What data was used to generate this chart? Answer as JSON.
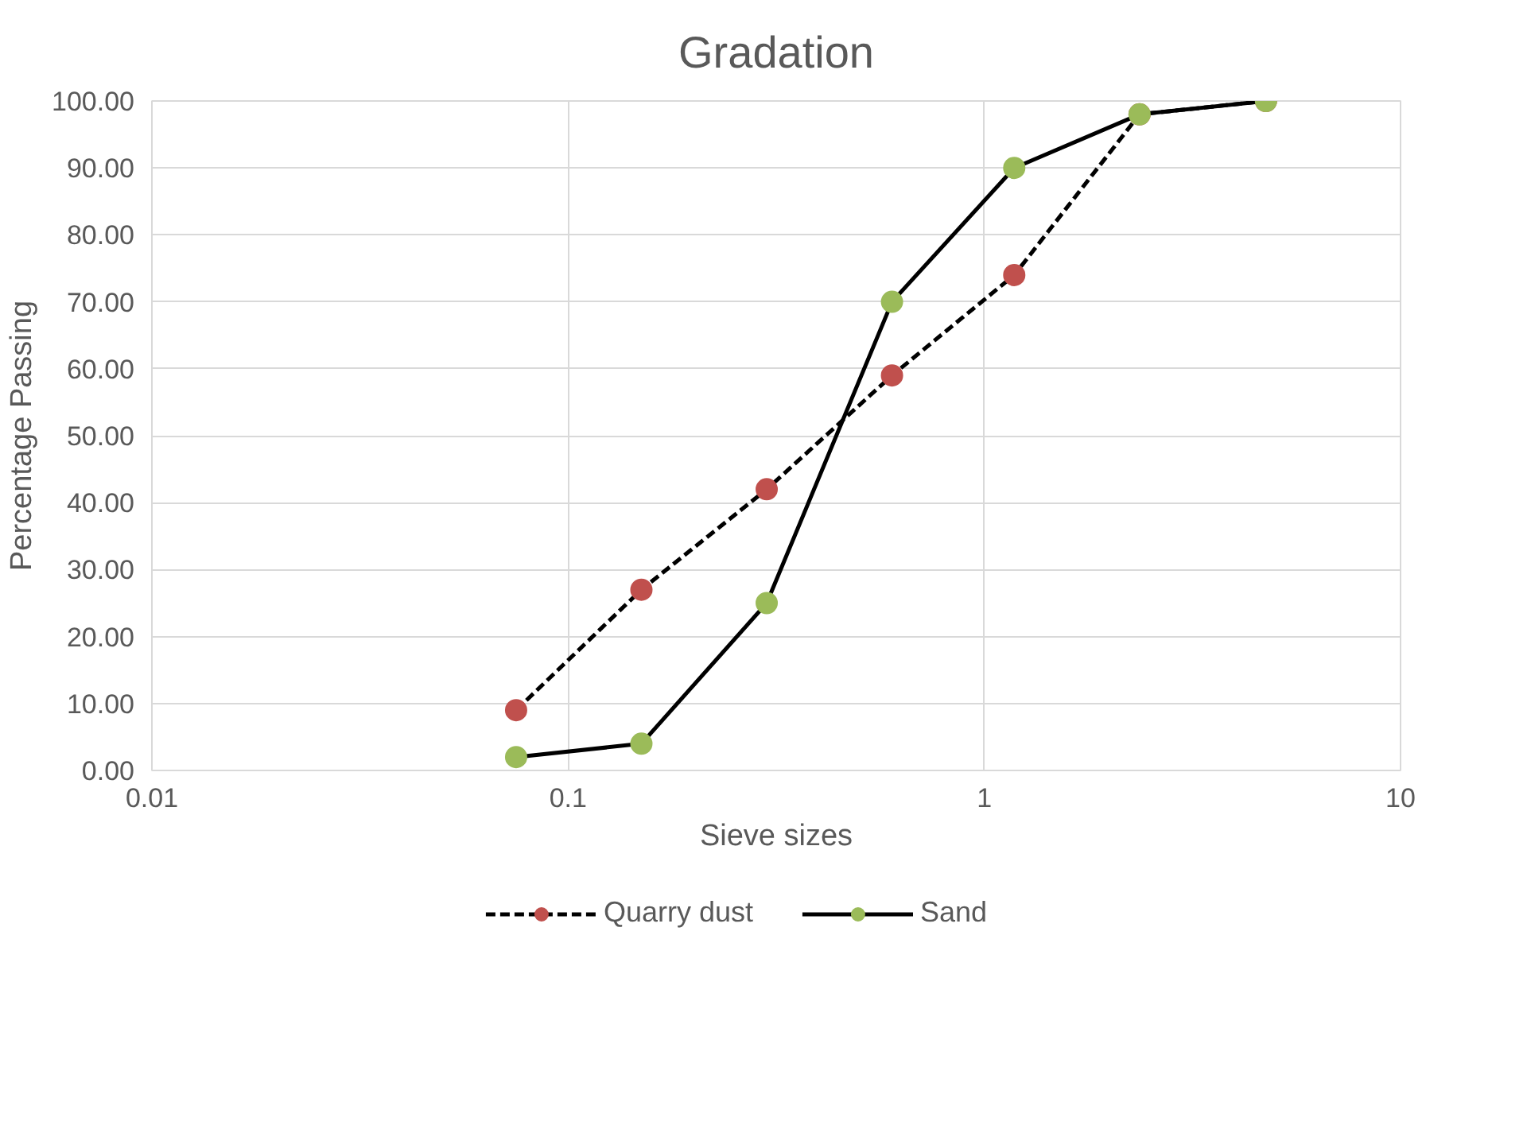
{
  "chart_data": {
    "type": "line",
    "title": "Gradation",
    "xlabel": "Sieve sizes",
    "ylabel": "Percentage Passing",
    "log": "x",
    "xlim": [
      0.01,
      10
    ],
    "xticks": [
      0.01,
      0.1,
      1,
      10
    ],
    "ylim": [
      0,
      100
    ],
    "yticks": [
      {
        "value": 0,
        "label": "0.00"
      },
      {
        "value": 10,
        "label": "10.00"
      },
      {
        "value": 20,
        "label": "20.00"
      },
      {
        "value": 30,
        "label": "30.00"
      },
      {
        "value": 40,
        "label": "40.00"
      },
      {
        "value": 50,
        "label": "50.00"
      },
      {
        "value": 60,
        "label": "60.00"
      },
      {
        "value": 70,
        "label": "70.00"
      },
      {
        "value": 80,
        "label": "80.00"
      },
      {
        "value": 90,
        "label": "90.00"
      },
      {
        "value": 100,
        "label": "100.00"
      }
    ],
    "grid": true,
    "legend": "bottom",
    "marker": "circle",
    "x": [
      0.075,
      0.15,
      0.3,
      0.6,
      1.18,
      2.36,
      4.75
    ],
    "series": [
      {
        "name": "Quarry dust",
        "color": "#c0504d",
        "line_style": "dashed",
        "values": [
          9,
          27,
          42,
          59,
          74,
          98,
          100
        ]
      },
      {
        "name": "Sand",
        "color": "#9bbb59",
        "line_style": "solid",
        "values": [
          2,
          4,
          25,
          70,
          90,
          98,
          100
        ]
      }
    ]
  }
}
